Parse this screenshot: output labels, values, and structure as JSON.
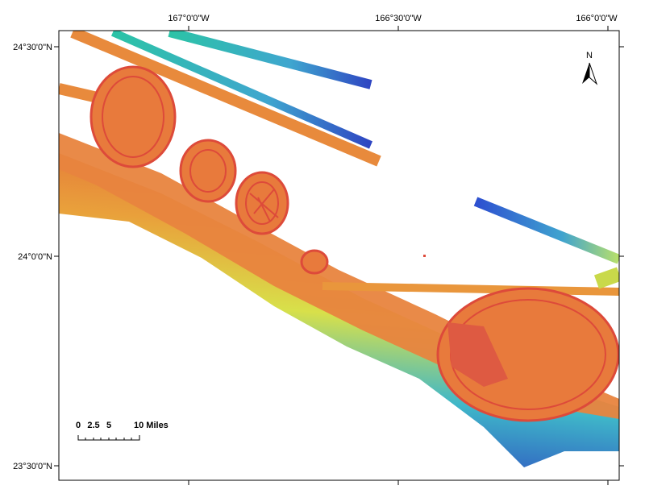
{
  "map": {
    "longitude_labels": [
      "167°0'0\"W",
      "166°30'0\"W",
      "166°0'0\"W"
    ],
    "latitude_labels": [
      "24°30'0\"N",
      "24°0'0\"N",
      "23°30'0\"N"
    ],
    "north_label": "N",
    "scale_bar": {
      "labels": [
        "0",
        "2.5",
        "5",
        "10 Miles"
      ]
    }
  }
}
